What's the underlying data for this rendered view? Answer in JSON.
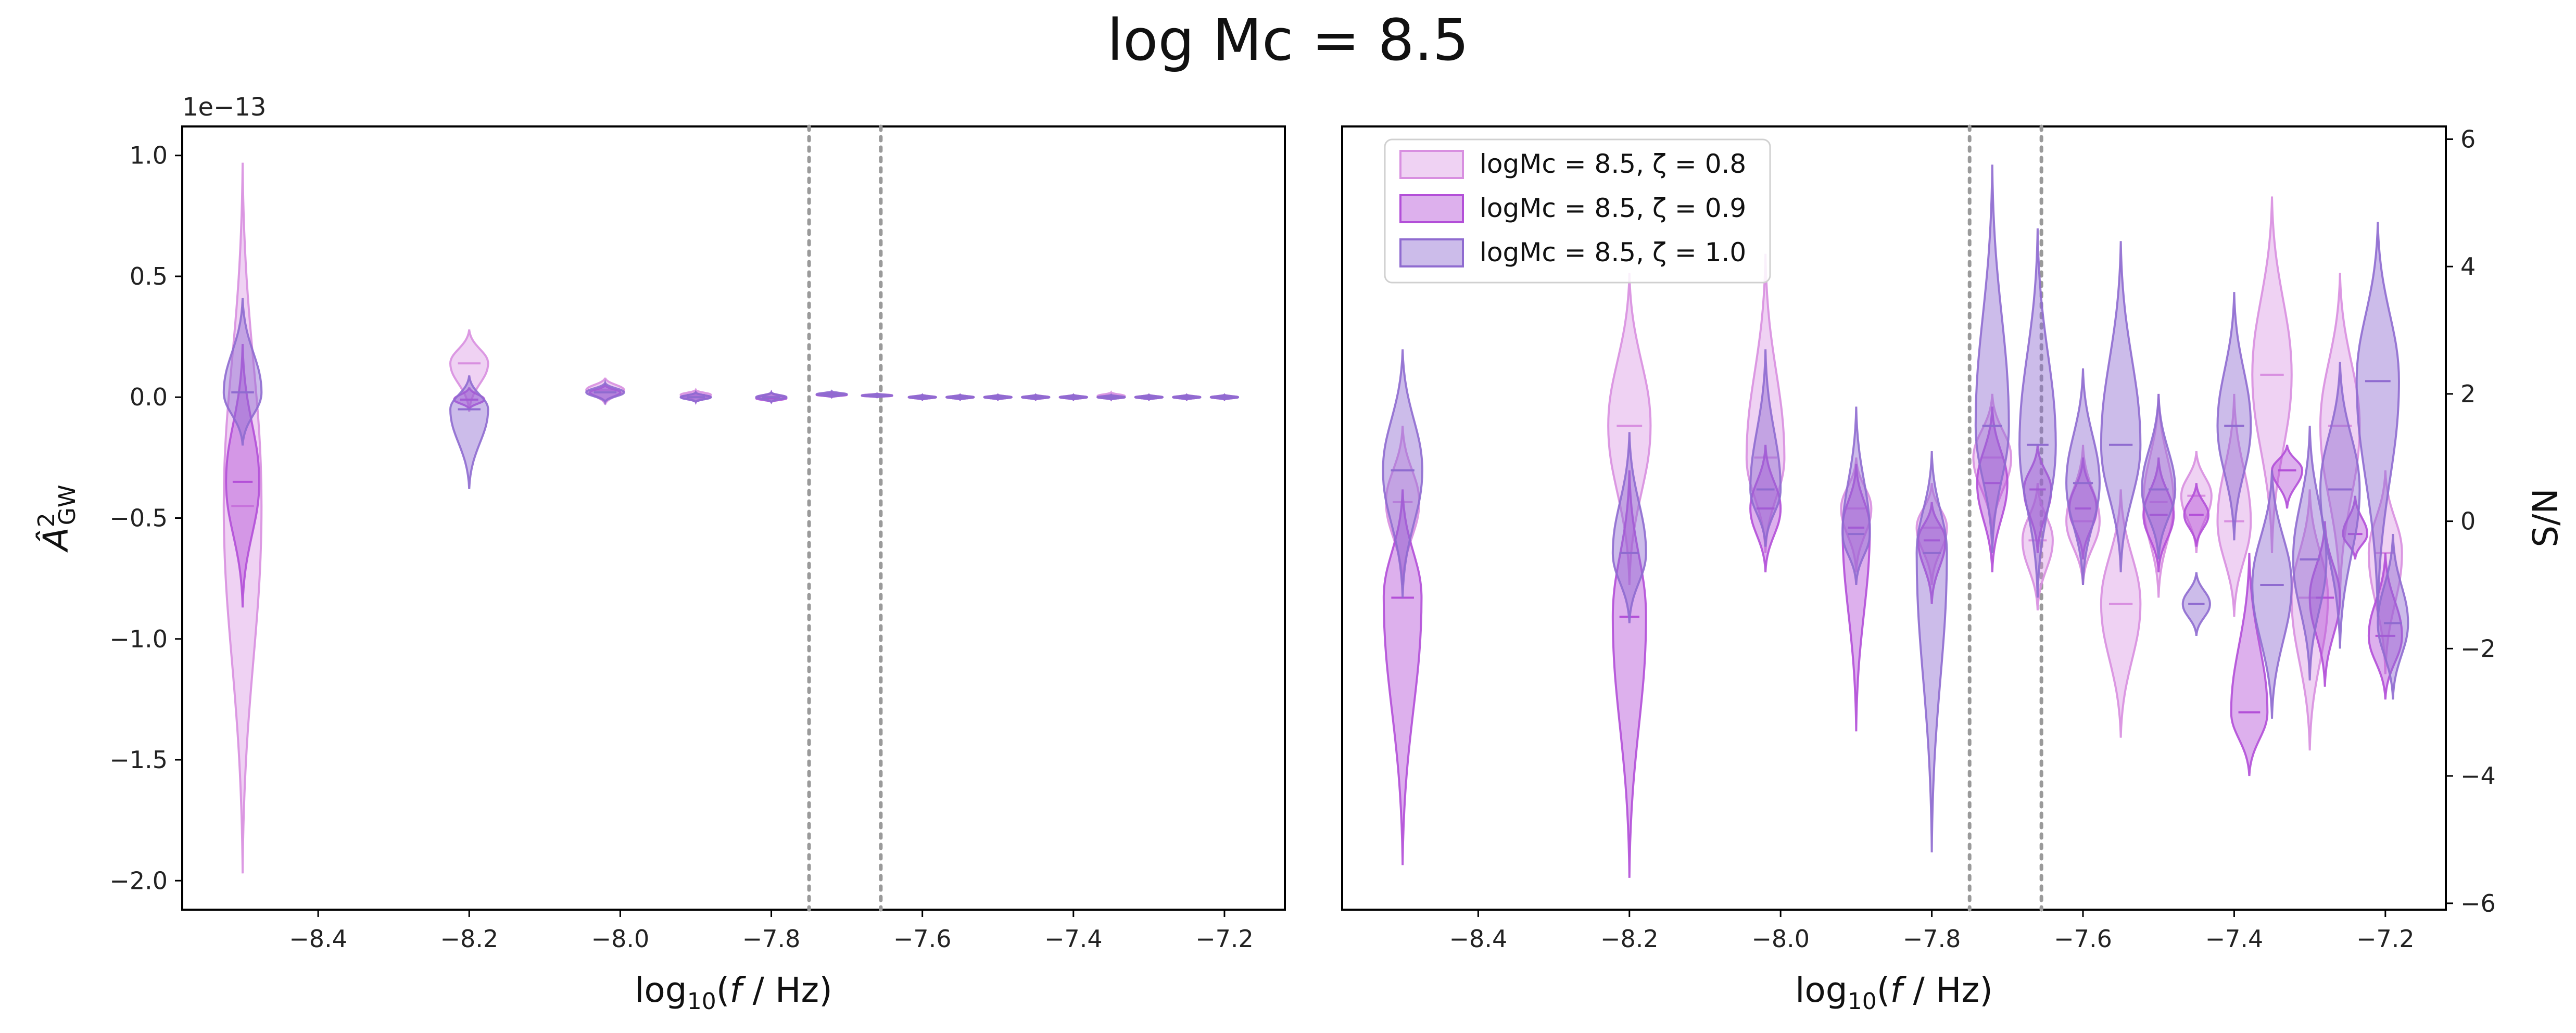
{
  "figure_title": "log Mc = 8.5",
  "colors": {
    "zeta_0_8": "#d88fe0",
    "zeta_0_9": "#b34fd8",
    "zeta_1_0": "#8f6bd0",
    "vline": "#9a9a9a"
  },
  "chart_data": [
    {
      "type": "violin",
      "panel": "left",
      "xlabel": "log10(f / Hz)",
      "ylabel": "Â²_GW",
      "y_offset_text": "1e−13",
      "xlim": [
        -8.58,
        -7.12
      ],
      "ylim": [
        -2.12,
        1.12
      ],
      "xticks": [
        -8.4,
        -8.2,
        -8.0,
        -7.8,
        -7.6,
        -7.4,
        -7.2
      ],
      "xtick_labels": [
        "−8.4",
        "−8.2",
        "−8.0",
        "−7.8",
        "−7.6",
        "−7.4",
        "−7.2"
      ],
      "yticks": [
        1.0,
        0.5,
        0.0,
        -0.5,
        -1.0,
        -1.5,
        -2.0
      ],
      "ytick_labels": [
        "1.0",
        "0.5",
        "0.0",
        "−0.5",
        "−1.0",
        "−1.5",
        "−2.0"
      ],
      "vlines": [
        -7.75,
        -7.655
      ],
      "series": [
        {
          "name": "logMc = 8.5, ζ = 0.8",
          "color_key": "zeta_0_8",
          "opacity": 0.4,
          "violins": [
            {
              "x": -8.5,
              "min": -1.97,
              "max": 0.97,
              "center": -0.45,
              "hw": 0.025
            },
            {
              "x": -8.2,
              "min": -0.06,
              "max": 0.28,
              "center": 0.14,
              "hw": 0.025
            },
            {
              "x": -8.02,
              "min": -0.03,
              "max": 0.08,
              "center": 0.03,
              "hw": 0.025
            },
            {
              "x": -7.9,
              "min": -0.02,
              "max": 0.03,
              "center": 0.01,
              "hw": 0.02
            },
            {
              "x": -7.8,
              "min": -0.02,
              "max": 0.02,
              "center": 0.0,
              "hw": 0.02
            },
            {
              "x": -7.72,
              "min": 0.0,
              "max": 0.02,
              "center": 0.01,
              "hw": 0.02
            },
            {
              "x": -7.66,
              "min": 0.0,
              "max": 0.015,
              "center": 0.008,
              "hw": 0.02
            },
            {
              "x": -7.6,
              "min": -0.01,
              "max": 0.01,
              "center": 0.0,
              "hw": 0.018
            },
            {
              "x": -7.55,
              "min": -0.01,
              "max": 0.01,
              "center": 0.0,
              "hw": 0.018
            },
            {
              "x": -7.5,
              "min": -0.01,
              "max": 0.01,
              "center": 0.0,
              "hw": 0.018
            },
            {
              "x": -7.45,
              "min": -0.01,
              "max": 0.01,
              "center": 0.0,
              "hw": 0.018
            },
            {
              "x": -7.4,
              "min": -0.01,
              "max": 0.01,
              "center": 0.0,
              "hw": 0.018
            },
            {
              "x": -7.35,
              "min": -0.01,
              "max": 0.02,
              "center": 0.005,
              "hw": 0.018
            },
            {
              "x": -7.3,
              "min": -0.01,
              "max": 0.01,
              "center": 0.0,
              "hw": 0.018
            },
            {
              "x": -7.25,
              "min": -0.01,
              "max": 0.01,
              "center": 0.0,
              "hw": 0.018
            },
            {
              "x": -7.2,
              "min": -0.01,
              "max": 0.01,
              "center": 0.0,
              "hw": 0.018
            }
          ]
        },
        {
          "name": "logMc = 8.5, ζ = 0.9",
          "color_key": "zeta_0_9",
          "opacity": 0.45,
          "violins": [
            {
              "x": -8.5,
              "min": -0.87,
              "max": 0.22,
              "center": -0.35,
              "hw": 0.022
            },
            {
              "x": -8.2,
              "min": -0.05,
              "max": 0.04,
              "center": -0.01,
              "hw": 0.02
            },
            {
              "x": -8.02,
              "min": -0.02,
              "max": 0.05,
              "center": 0.02,
              "hw": 0.02
            },
            {
              "x": -7.9,
              "min": -0.02,
              "max": 0.02,
              "center": 0.0,
              "hw": 0.02
            },
            {
              "x": -7.8,
              "min": -0.02,
              "max": 0.02,
              "center": -0.005,
              "hw": 0.02
            },
            {
              "x": -7.72,
              "min": 0.0,
              "max": 0.02,
              "center": 0.01,
              "hw": 0.02
            },
            {
              "x": -7.66,
              "min": 0.0,
              "max": 0.012,
              "center": 0.006,
              "hw": 0.02
            },
            {
              "x": -7.6,
              "min": -0.01,
              "max": 0.008,
              "center": 0.0,
              "hw": 0.018
            },
            {
              "x": -7.55,
              "min": -0.01,
              "max": 0.008,
              "center": 0.0,
              "hw": 0.018
            },
            {
              "x": -7.5,
              "min": -0.01,
              "max": 0.008,
              "center": 0.0,
              "hw": 0.018
            },
            {
              "x": -7.45,
              "min": -0.01,
              "max": 0.008,
              "center": 0.0,
              "hw": 0.018
            },
            {
              "x": -7.4,
              "min": -0.01,
              "max": 0.008,
              "center": 0.0,
              "hw": 0.018
            },
            {
              "x": -7.35,
              "min": -0.01,
              "max": 0.008,
              "center": 0.0,
              "hw": 0.018
            },
            {
              "x": -7.3,
              "min": -0.01,
              "max": 0.008,
              "center": 0.0,
              "hw": 0.018
            },
            {
              "x": -7.25,
              "min": -0.01,
              "max": 0.008,
              "center": 0.0,
              "hw": 0.018
            },
            {
              "x": -7.2,
              "min": -0.01,
              "max": 0.008,
              "center": 0.0,
              "hw": 0.018
            }
          ]
        },
        {
          "name": "logMc = 8.5, ζ = 1.0",
          "color_key": "zeta_1_0",
          "opacity": 0.45,
          "violins": [
            {
              "x": -8.5,
              "min": -0.2,
              "max": 0.41,
              "center": 0.02,
              "hw": 0.025
            },
            {
              "x": -8.2,
              "min": -0.38,
              "max": 0.09,
              "center": -0.05,
              "hw": 0.025
            },
            {
              "x": -8.02,
              "min": -0.02,
              "max": 0.06,
              "center": 0.02,
              "hw": 0.025
            },
            {
              "x": -7.9,
              "min": -0.02,
              "max": 0.02,
              "center": 0.0,
              "hw": 0.02
            },
            {
              "x": -7.8,
              "min": -0.02,
              "max": 0.02,
              "center": 0.0,
              "hw": 0.02
            },
            {
              "x": -7.72,
              "min": 0.0,
              "max": 0.025,
              "center": 0.012,
              "hw": 0.02
            },
            {
              "x": -7.66,
              "min": 0.0,
              "max": 0.015,
              "center": 0.007,
              "hw": 0.02
            },
            {
              "x": -7.6,
              "min": -0.01,
              "max": 0.01,
              "center": 0.0,
              "hw": 0.018
            },
            {
              "x": -7.55,
              "min": -0.01,
              "max": 0.01,
              "center": 0.0,
              "hw": 0.018
            },
            {
              "x": -7.5,
              "min": -0.01,
              "max": 0.01,
              "center": 0.0,
              "hw": 0.018
            },
            {
              "x": -7.45,
              "min": -0.01,
              "max": 0.01,
              "center": 0.0,
              "hw": 0.018
            },
            {
              "x": -7.4,
              "min": -0.01,
              "max": 0.01,
              "center": 0.0,
              "hw": 0.018
            },
            {
              "x": -7.35,
              "min": -0.01,
              "max": 0.01,
              "center": 0.0,
              "hw": 0.018
            },
            {
              "x": -7.3,
              "min": -0.01,
              "max": 0.01,
              "center": 0.0,
              "hw": 0.018
            },
            {
              "x": -7.25,
              "min": -0.01,
              "max": 0.01,
              "center": 0.0,
              "hw": 0.018
            },
            {
              "x": -7.2,
              "min": -0.01,
              "max": 0.01,
              "center": 0.0,
              "hw": 0.018
            }
          ]
        }
      ]
    },
    {
      "type": "violin",
      "panel": "right",
      "xlabel": "log10(f / Hz)",
      "ylabel": "S/N",
      "xlim": [
        -8.58,
        -7.12
      ],
      "ylim": [
        -6.1,
        6.2
      ],
      "xticks": [
        -8.4,
        -8.2,
        -8.0,
        -7.8,
        -7.6,
        -7.4,
        -7.2
      ],
      "xtick_labels": [
        "−8.4",
        "−8.2",
        "−8.0",
        "−7.8",
        "−7.6",
        "−7.4",
        "−7.2"
      ],
      "yticks": [
        6,
        4,
        2,
        0,
        -2,
        -4,
        -6
      ],
      "ytick_labels": [
        "6",
        "4",
        "2",
        "0",
        "−2",
        "−4",
        "−6"
      ],
      "vlines": [
        -7.75,
        -7.655
      ],
      "legend": {
        "placement": "upper-left",
        "entries": [
          "logMc = 8.5, ζ = 0.8",
          "logMc = 8.5, ζ = 0.9",
          "logMc = 8.5, ζ = 1.0"
        ]
      },
      "series": [
        {
          "name": "logMc = 8.5, ζ = 0.8",
          "color_key": "zeta_0_8",
          "opacity": 0.4,
          "violins": [
            {
              "x": -8.5,
              "min": -1.0,
              "max": 1.5,
              "center": 0.3,
              "hw": 0.022
            },
            {
              "x": -8.2,
              "min": -1.0,
              "max": 3.9,
              "center": 1.5,
              "hw": 0.028
            },
            {
              "x": -8.02,
              "min": -0.5,
              "max": 4.2,
              "center": 1.0,
              "hw": 0.025
            },
            {
              "x": -7.9,
              "min": -0.8,
              "max": 1.0,
              "center": 0.2,
              "hw": 0.02
            },
            {
              "x": -7.8,
              "min": -1.0,
              "max": 0.6,
              "center": -0.1,
              "hw": 0.02
            },
            {
              "x": -7.72,
              "min": -0.2,
              "max": 2.0,
              "center": 1.0,
              "hw": 0.025
            },
            {
              "x": -7.66,
              "min": -1.4,
              "max": 0.6,
              "center": -0.3,
              "hw": 0.02
            },
            {
              "x": -7.6,
              "min": -1.0,
              "max": 1.2,
              "center": 0.0,
              "hw": 0.022
            },
            {
              "x": -7.55,
              "min": -3.4,
              "max": 0.5,
              "center": -1.3,
              "hw": 0.026
            },
            {
              "x": -7.5,
              "min": -1.2,
              "max": 2.0,
              "center": 0.3,
              "hw": 0.02
            },
            {
              "x": -7.45,
              "min": -0.5,
              "max": 1.1,
              "center": 0.4,
              "hw": 0.02
            },
            {
              "x": -7.4,
              "min": -1.5,
              "max": 2.0,
              "center": 0.0,
              "hw": 0.022
            },
            {
              "x": -7.35,
              "min": -0.5,
              "max": 5.1,
              "center": 2.3,
              "hw": 0.026
            },
            {
              "x": -7.3,
              "min": -3.6,
              "max": 0.5,
              "center": -1.2,
              "hw": 0.024
            },
            {
              "x": -7.26,
              "min": -1.2,
              "max": 3.9,
              "center": 1.5,
              "hw": 0.026
            },
            {
              "x": -7.2,
              "min": -2.4,
              "max": 0.8,
              "center": -0.5,
              "hw": 0.022
            }
          ]
        },
        {
          "name": "logMc = 8.5, ζ = 0.9",
          "color_key": "zeta_0_9",
          "opacity": 0.45,
          "violins": [
            {
              "x": -8.5,
              "min": -5.4,
              "max": 0.5,
              "center": -1.2,
              "hw": 0.025
            },
            {
              "x": -8.2,
              "min": -5.6,
              "max": 0.8,
              "center": -1.5,
              "hw": 0.022
            },
            {
              "x": -8.02,
              "min": -0.8,
              "max": 1.2,
              "center": 0.2,
              "hw": 0.02
            },
            {
              "x": -7.9,
              "min": -3.3,
              "max": 0.9,
              "center": -0.1,
              "hw": 0.018
            },
            {
              "x": -7.8,
              "min": -1.3,
              "max": 0.3,
              "center": -0.3,
              "hw": 0.018
            },
            {
              "x": -7.72,
              "min": -0.8,
              "max": 1.8,
              "center": 0.6,
              "hw": 0.02
            },
            {
              "x": -7.66,
              "min": -0.5,
              "max": 1.2,
              "center": 0.5,
              "hw": 0.018
            },
            {
              "x": -7.6,
              "min": -0.6,
              "max": 1.0,
              "center": 0.2,
              "hw": 0.018
            },
            {
              "x": -7.5,
              "min": -0.8,
              "max": 1.0,
              "center": 0.1,
              "hw": 0.02
            },
            {
              "x": -7.45,
              "min": -0.4,
              "max": 0.6,
              "center": 0.1,
              "hw": 0.016
            },
            {
              "x": -7.38,
              "min": -4.0,
              "max": -0.5,
              "center": -3.0,
              "hw": 0.024
            },
            {
              "x": -7.33,
              "min": 0.2,
              "max": 1.2,
              "center": 0.8,
              "hw": 0.02
            },
            {
              "x": -7.28,
              "min": -2.6,
              "max": 0.0,
              "center": -1.2,
              "hw": 0.02
            },
            {
              "x": -7.24,
              "min": -0.6,
              "max": 0.4,
              "center": -0.2,
              "hw": 0.016
            },
            {
              "x": -7.2,
              "min": -2.8,
              "max": -0.5,
              "center": -1.8,
              "hw": 0.022
            }
          ]
        },
        {
          "name": "logMc = 8.5, ζ = 1.0",
          "color_key": "zeta_1_0",
          "opacity": 0.45,
          "violins": [
            {
              "x": -8.5,
              "min": -1.2,
              "max": 2.7,
              "center": 0.8,
              "hw": 0.026
            },
            {
              "x": -8.2,
              "min": -1.6,
              "max": 1.4,
              "center": -0.5,
              "hw": 0.022
            },
            {
              "x": -8.02,
              "min": -0.4,
              "max": 2.7,
              "center": 0.5,
              "hw": 0.02
            },
            {
              "x": -7.9,
              "min": -1.0,
              "max": 1.8,
              "center": -0.2,
              "hw": 0.018
            },
            {
              "x": -7.8,
              "min": -5.2,
              "max": 1.1,
              "center": -0.5,
              "hw": 0.02
            },
            {
              "x": -7.72,
              "min": -0.5,
              "max": 5.6,
              "center": 1.5,
              "hw": 0.022
            },
            {
              "x": -7.66,
              "min": -1.2,
              "max": 4.6,
              "center": 1.2,
              "hw": 0.024
            },
            {
              "x": -7.6,
              "min": -1.0,
              "max": 2.4,
              "center": 0.6,
              "hw": 0.022
            },
            {
              "x": -7.55,
              "min": -0.8,
              "max": 4.4,
              "center": 1.2,
              "hw": 0.026
            },
            {
              "x": -7.5,
              "min": -0.6,
              "max": 2.0,
              "center": 0.5,
              "hw": 0.022
            },
            {
              "x": -7.45,
              "min": -1.8,
              "max": -0.8,
              "center": -1.3,
              "hw": 0.018
            },
            {
              "x": -7.4,
              "min": -0.3,
              "max": 3.6,
              "center": 1.5,
              "hw": 0.022
            },
            {
              "x": -7.35,
              "min": -3.1,
              "max": 0.8,
              "center": -1.0,
              "hw": 0.026
            },
            {
              "x": -7.3,
              "min": -2.5,
              "max": 1.5,
              "center": -0.6,
              "hw": 0.022
            },
            {
              "x": -7.26,
              "min": -2.0,
              "max": 2.5,
              "center": 0.5,
              "hw": 0.026
            },
            {
              "x": -7.21,
              "min": -1.5,
              "max": 4.7,
              "center": 2.2,
              "hw": 0.028
            },
            {
              "x": -7.19,
              "min": -2.8,
              "max": -0.2,
              "center": -1.6,
              "hw": 0.02
            }
          ]
        }
      ]
    }
  ]
}
